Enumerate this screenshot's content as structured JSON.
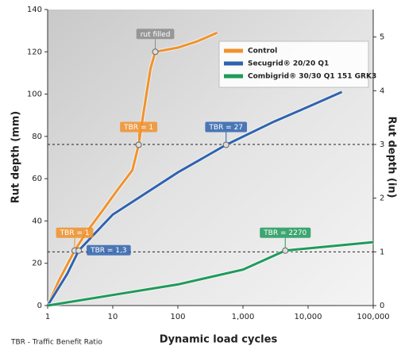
{
  "chart_data": {
    "type": "line",
    "xlabel": "Dynamic load cycles",
    "ylabel": "Rut depth (mm)",
    "y2label": "Rut depth (in)",
    "note": "TBR - Traffic Benefit Ratio",
    "xscale": "log",
    "xlim": [
      1,
      100000
    ],
    "xticks": [
      1,
      10,
      100,
      {
        "value": 1000,
        "label": "1,000"
      },
      {
        "value": 10000,
        "label": "10,000"
      },
      {
        "value": 100000,
        "label": "100,000"
      }
    ],
    "ylim": [
      0,
      140
    ],
    "yticks": [
      0,
      20,
      40,
      60,
      80,
      100,
      120,
      140
    ],
    "y2lim": [
      0,
      5.512
    ],
    "y2ticks": [
      0,
      1,
      2,
      3,
      4,
      5
    ],
    "ref_lines_y2": [
      3,
      1
    ],
    "legend": "upper right",
    "series": [
      {
        "name": "Control",
        "color": "#f0922b",
        "x": [
          1,
          1.5,
          2.6,
          4,
          7,
          12,
          20,
          25,
          30,
          38,
          45,
          100,
          200,
          400
        ],
        "values": [
          0,
          12,
          26,
          35,
          45,
          55,
          64,
          76,
          92,
          112,
          120,
          122,
          125,
          129
        ]
      },
      {
        "name": "Secugrid® 20/20 Q1",
        "color": "#2f63ae",
        "x": [
          1,
          2,
          3,
          10,
          100,
          550,
          3000,
          10000,
          33000
        ],
        "values": [
          0,
          15,
          26,
          43,
          63,
          76,
          87,
          94,
          101
        ]
      },
      {
        "name": "Combigrid® 30/30 Q1 151 GRK3",
        "color": "#1f9a5a",
        "x": [
          1,
          10,
          100,
          1000,
          4460,
          100000
        ],
        "values": [
          0,
          5,
          10,
          17,
          26,
          30
        ]
      }
    ],
    "annotations": [
      {
        "text": "rut filled",
        "x": 45,
        "y": 120,
        "color": "#8c8c8c"
      },
      {
        "text": "TBR = 1",
        "x": 25,
        "y": 76,
        "color": "#f0922b"
      },
      {
        "text": "TBR = 27",
        "x": 550,
        "y": 76,
        "color": "#2f63ae"
      },
      {
        "text": "TBR = 1",
        "x": 2.6,
        "y": 26,
        "color": "#f0922b"
      },
      {
        "text": "TBR = 1,3",
        "x": 3,
        "y": 26,
        "color": "#2f63ae"
      },
      {
        "text": "TBR = 2270",
        "x": 4460,
        "y": 26,
        "color": "#1f9a5a"
      }
    ]
  }
}
